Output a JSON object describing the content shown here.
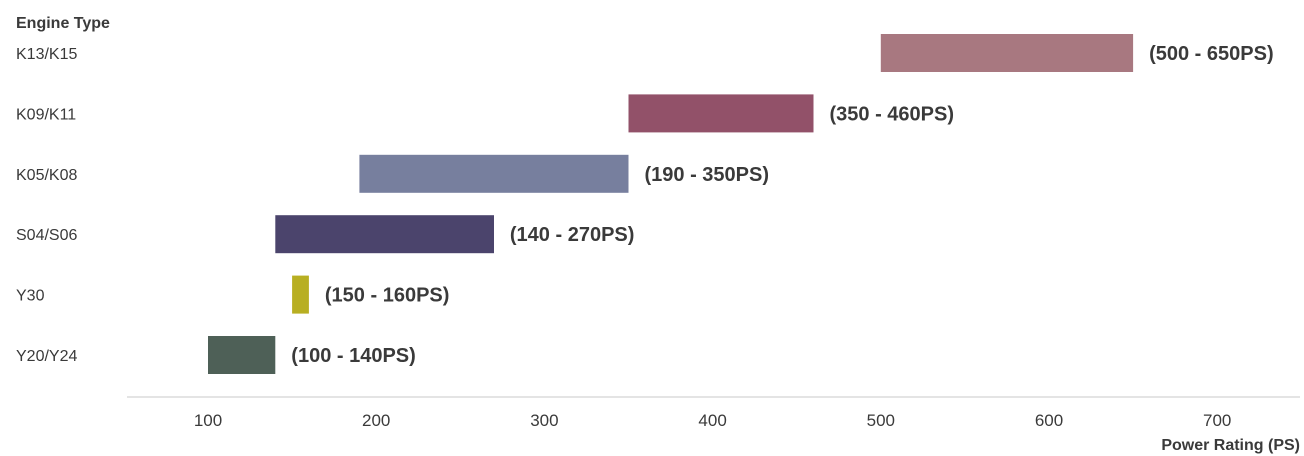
{
  "chart_data": {
    "type": "bar",
    "orientation": "horizontal-range",
    "title": "",
    "ylabel": "Engine Type",
    "xlabel": "Power Rating (PS)",
    "xlim": [
      70,
      730
    ],
    "xticks": [
      100,
      200,
      300,
      400,
      500,
      600,
      700
    ],
    "grid": false,
    "legend": "none",
    "categories": [
      "K13/K15",
      "K09/K11",
      "K05/K08",
      "S04/S06",
      "Y30",
      "Y20/Y24"
    ],
    "ranges": [
      {
        "category": "K13/K15",
        "start": 500,
        "end": 650,
        "label": "(500 - 650PS)",
        "color": "#a87880"
      },
      {
        "category": "K09/K11",
        "start": 350,
        "end": 460,
        "label": "(350 - 460PS)",
        "color": "#925169"
      },
      {
        "category": "K05/K08",
        "start": 190,
        "end": 350,
        "label": "(190 - 350PS)",
        "color": "#777f9e"
      },
      {
        "category": "S04/S06",
        "start": 140,
        "end": 270,
        "label": "(140 - 270PS)",
        "color": "#4b446c"
      },
      {
        "category": "Y30",
        "start": 150,
        "end": 160,
        "label": "(150 - 160PS)",
        "color": "#b8af22"
      },
      {
        "category": "Y20/Y24",
        "start": 100,
        "end": 140,
        "label": "(100 - 140PS)",
        "color": "#4e6057"
      }
    ]
  }
}
